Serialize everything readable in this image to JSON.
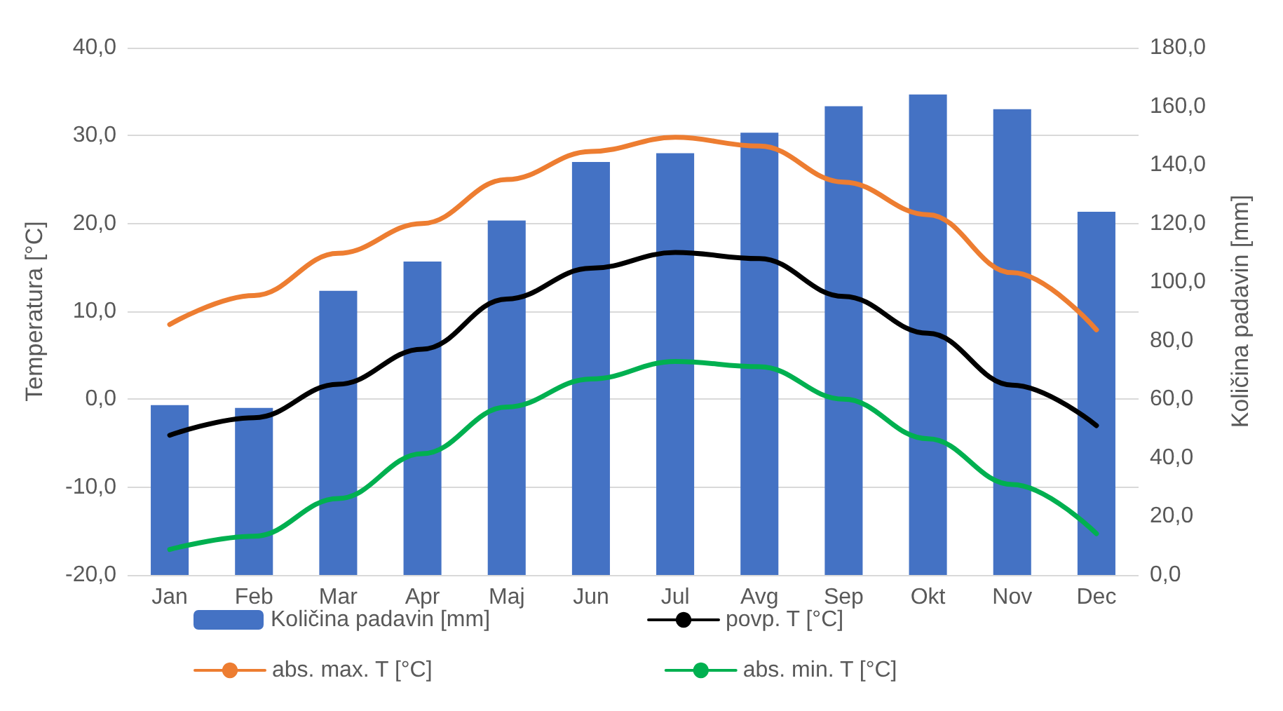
{
  "chart_data": {
    "type": "line",
    "ylabel": "Temperatura [°C]",
    "y2label": "Količina padavin [mm]",
    "categories": [
      "Jan",
      "Feb",
      "Mar",
      "Apr",
      "Maj",
      "Jun",
      "Jul",
      "Avg",
      "Sep",
      "Okt",
      "Nov",
      "Dec"
    ],
    "series": [
      {
        "name": "Količina padavin [mm]",
        "type": "bar",
        "axis": "y2",
        "color": "#4472c4",
        "values": [
          58,
          57,
          97,
          107,
          121,
          141,
          144,
          151,
          160,
          164,
          159,
          124
        ]
      },
      {
        "name": "povp. T [°C]",
        "color": "#000000",
        "values": [
          -4.1,
          -2.1,
          1.7,
          5.7,
          11.4,
          14.9,
          16.7,
          16.0,
          11.7,
          7.5,
          1.6,
          -3.0
        ]
      },
      {
        "name": "abs. max. T [°C]",
        "color": "#ed7d31",
        "values": [
          8.5,
          11.8,
          16.6,
          20.0,
          25.0,
          28.2,
          29.8,
          28.8,
          24.7,
          21.0,
          14.4,
          7.9
        ]
      },
      {
        "name": "abs. min. T [°C]",
        "color": "#00b050",
        "values": [
          -17.1,
          -15.6,
          -11.3,
          -6.2,
          -0.9,
          2.3,
          4.3,
          3.7,
          0.0,
          -4.5,
          -9.7,
          -15.3
        ]
      }
    ],
    "ylim": [
      -20,
      40
    ],
    "yticks": [
      {
        "value": -20,
        "label": "-20,0"
      },
      {
        "value": -10,
        "label": "-10,0"
      },
      {
        "value": 0,
        "label": "0,0"
      },
      {
        "value": 10,
        "label": "10,0"
      },
      {
        "value": 20,
        "label": "20,0"
      },
      {
        "value": 30,
        "label": "30,0"
      },
      {
        "value": 40,
        "label": "40,0"
      }
    ],
    "y2lim": [
      0,
      180
    ],
    "y2ticks": [
      {
        "value": 0,
        "label": "0,0"
      },
      {
        "value": 20,
        "label": "20,0"
      },
      {
        "value": 40,
        "label": "40,0"
      },
      {
        "value": 60,
        "label": "60,0"
      },
      {
        "value": 80,
        "label": "80,0"
      },
      {
        "value": 100,
        "label": "100,0"
      },
      {
        "value": 120,
        "label": "120,0"
      },
      {
        "value": 140,
        "label": "140,0"
      },
      {
        "value": 160,
        "label": "160,0"
      },
      {
        "value": 180,
        "label": "180,0"
      }
    ],
    "grid": "y",
    "legend": "bottom",
    "marker": "none",
    "line_style": "solid"
  }
}
